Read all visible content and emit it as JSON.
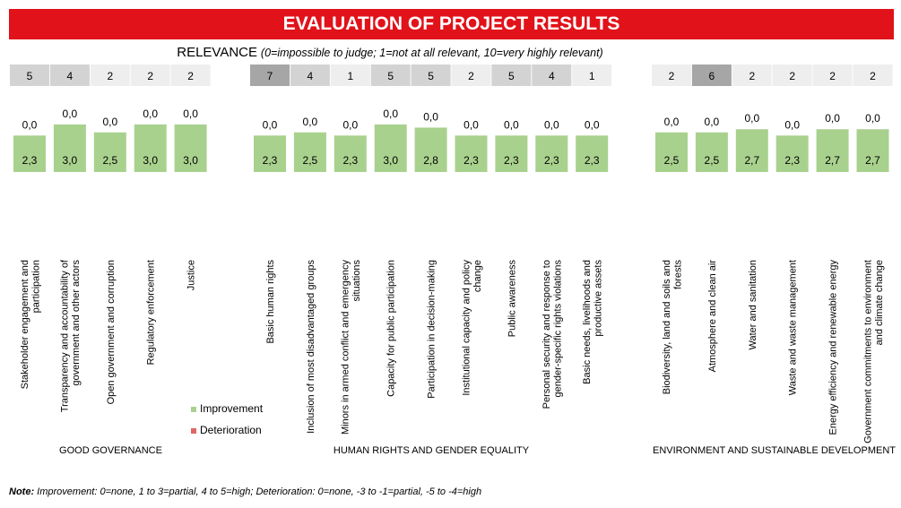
{
  "title": "EVALUATION OF PROJECT RESULTS",
  "relevance": {
    "label": "RELEVANCE",
    "note": "(0=impossible to judge; 1=not at all relevant, 10=very highly relevant)"
  },
  "legend": [
    {
      "label": "Improvement",
      "color": "#a9d18e"
    },
    {
      "label": "Deterioration",
      "color": "#e06666"
    }
  ],
  "footnote": {
    "label": "Note:",
    "text": " Improvement: 0=none, 1 to 3=partial, 4 to 5=high; Deterioration: 0=none, -3 to -1=partial, -5 to -4=high"
  },
  "colors": {
    "bar": "#a9d18e",
    "relevance_low": "#eeeeee",
    "relevance_mid": "#d3d3d3",
    "relevance_high": "#a6a6a6"
  },
  "chart_data": {
    "type": "bar",
    "title": "EVALUATION OF PROJECT RESULTS",
    "groups": [
      {
        "name": "GOOD GOVERNANCE",
        "categories": [
          {
            "label": "Stakeholder engagement and participation",
            "relevance": 5,
            "improvement": 2.3,
            "deterioration": 0.0
          },
          {
            "label": "Transparency and accountability of government and other actors",
            "relevance": 4,
            "improvement": 3.0,
            "deterioration": 0.0
          },
          {
            "label": "Open government and corruption",
            "relevance": 2,
            "improvement": 2.5,
            "deterioration": 0.0
          },
          {
            "label": "Regulatory enforcement",
            "relevance": 2,
            "improvement": 3.0,
            "deterioration": 0.0
          },
          {
            "label": "Justice",
            "relevance": 2,
            "improvement": 3.0,
            "deterioration": 0.0
          }
        ]
      },
      {
        "name": "HUMAN RIGHTS AND GENDER EQUALITY",
        "categories": [
          {
            "label": "Basic human rights",
            "relevance": 7,
            "improvement": 2.3,
            "deterioration": 0.0
          },
          {
            "label": "Inclusion of most disadvantaged groups",
            "relevance": 4,
            "improvement": 2.5,
            "deterioration": 0.0
          },
          {
            "label": "Minors in armed conflict and emergency situations",
            "relevance": 1,
            "improvement": 2.3,
            "deterioration": 0.0
          },
          {
            "label": "Capacity for public participation",
            "relevance": 5,
            "improvement": 3.0,
            "deterioration": 0.0
          },
          {
            "label": "Participation in decision-making",
            "relevance": 5,
            "improvement": 2.8,
            "deterioration": 0.0
          },
          {
            "label": "Institutional capacity and policy change",
            "relevance": 2,
            "improvement": 2.3,
            "deterioration": 0.0
          },
          {
            "label": "Public awareness",
            "relevance": 5,
            "improvement": 2.3,
            "deterioration": 0.0
          },
          {
            "label": "Personal security and response to gender-specific rights violations",
            "relevance": 4,
            "improvement": 2.3,
            "deterioration": 0.0
          },
          {
            "label": "Basic needs, livelihoods and productive assets",
            "relevance": 1,
            "improvement": 2.3,
            "deterioration": 0.0
          }
        ]
      },
      {
        "name": "ENVIRONMENT AND SUSTAINABLE DEVELOPMENT",
        "categories": [
          {
            "label": "Biodiversity, land and soils and forests",
            "relevance": 2,
            "improvement": 2.5,
            "deterioration": 0.0
          },
          {
            "label": "Atmosphere and clean air",
            "relevance": 6,
            "improvement": 2.5,
            "deterioration": 0.0
          },
          {
            "label": "Water and sanitation",
            "relevance": 2,
            "improvement": 2.7,
            "deterioration": 0.0
          },
          {
            "label": "Waste and waste management",
            "relevance": 2,
            "improvement": 2.3,
            "deterioration": 0.0
          },
          {
            "label": "Energy efficiency and renewable energy",
            "relevance": 2,
            "improvement": 2.7,
            "deterioration": 0.0
          },
          {
            "label": "Government commitments to environment and climate change",
            "relevance": 2,
            "improvement": 2.7,
            "deterioration": 0.0
          }
        ]
      }
    ],
    "ylim": [
      0,
      5
    ],
    "grid": false,
    "legend_position": "bottom-left"
  }
}
